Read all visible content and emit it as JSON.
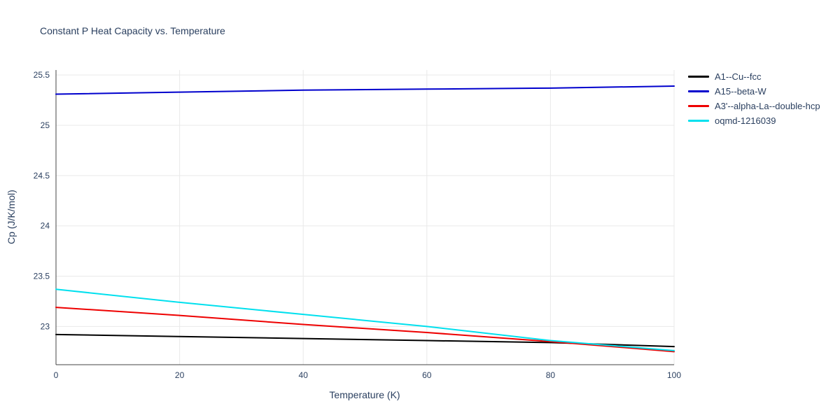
{
  "title": "Constant P Heat Capacity vs. Temperature",
  "chart_data": {
    "type": "line",
    "title": "Constant P Heat Capacity vs. Temperature",
    "xlabel": "Temperature (K)",
    "ylabel": "Cp (J/K/mol)",
    "x": [
      0,
      20,
      40,
      60,
      80,
      100
    ],
    "xticks": [
      0,
      20,
      40,
      60,
      80,
      100
    ],
    "yticks": [
      23,
      23.5,
      24,
      24.5,
      25,
      25.5
    ],
    "xlim": [
      0,
      100
    ],
    "ylim": [
      22.62,
      25.55
    ],
    "grid": true,
    "legend_position": "top-right-outside",
    "grid_color": "#e9e9e9",
    "axis_color": "#444444",
    "label_color": "#2a3f5f",
    "title_color": "#2a3f5f",
    "series": [
      {
        "name": "A1--Cu--fcc",
        "color": "#000000",
        "values": [
          22.92,
          22.9,
          22.88,
          22.86,
          22.84,
          22.8
        ]
      },
      {
        "name": "A15--beta-W",
        "color": "#0000cd",
        "values": [
          25.31,
          25.33,
          25.35,
          25.36,
          25.37,
          25.39
        ]
      },
      {
        "name": "A3'--alpha-La--double-hcp",
        "color": "#ee0000",
        "values": [
          23.19,
          23.11,
          23.02,
          22.94,
          22.85,
          22.75
        ]
      },
      {
        "name": "oqmd-1216039",
        "color": "#00e0ee",
        "values": [
          23.37,
          23.24,
          23.12,
          23.0,
          22.86,
          22.76
        ]
      }
    ]
  }
}
